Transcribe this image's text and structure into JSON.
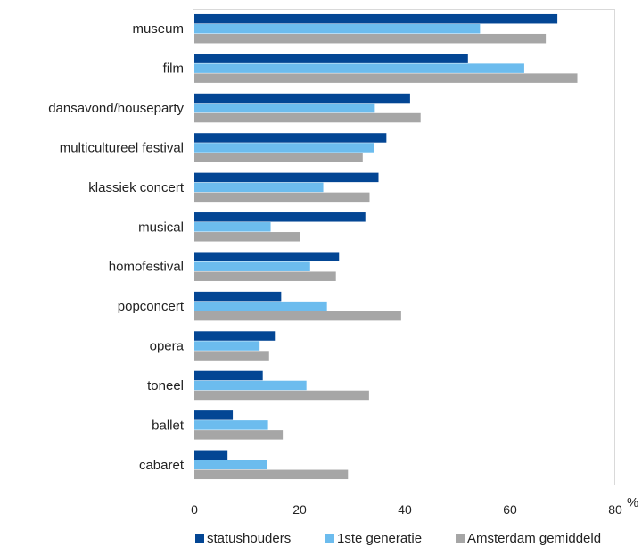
{
  "chart_data": {
    "type": "bar",
    "orientation": "horizontal",
    "categories": [
      "museum",
      "film",
      "dansavond/houseparty",
      "multicultureel festival",
      "klassiek concert",
      "musical",
      "homofestival",
      "popconcert",
      "opera",
      "toneel",
      "ballet",
      "cabaret"
    ],
    "series": [
      {
        "name": "statushouders",
        "color": "#034694",
        "values": [
          69,
          52,
          41,
          36.5,
          35,
          32.5,
          27.5,
          16.5,
          15.3,
          13,
          7.3,
          6.3
        ]
      },
      {
        "name": "1ste generatie",
        "color": "#6cbcee",
        "values": [
          54.3,
          62.7,
          34.3,
          34.2,
          24.5,
          14.5,
          22,
          25.2,
          12.4,
          21.3,
          14,
          13.8
        ]
      },
      {
        "name": "Amsterdam gemiddeld",
        "color": "#a6a6a6",
        "values": [
          66.8,
          72.8,
          43,
          32,
          33.3,
          20,
          26.9,
          39.3,
          14.2,
          33.2,
          16.8,
          29.2
        ]
      }
    ],
    "xlim": [
      0,
      80
    ],
    "x_ticks": [
      "0",
      "20",
      "40",
      "60",
      "80"
    ],
    "unit_label": "%",
    "legend_position": "bottom",
    "grid": false
  }
}
